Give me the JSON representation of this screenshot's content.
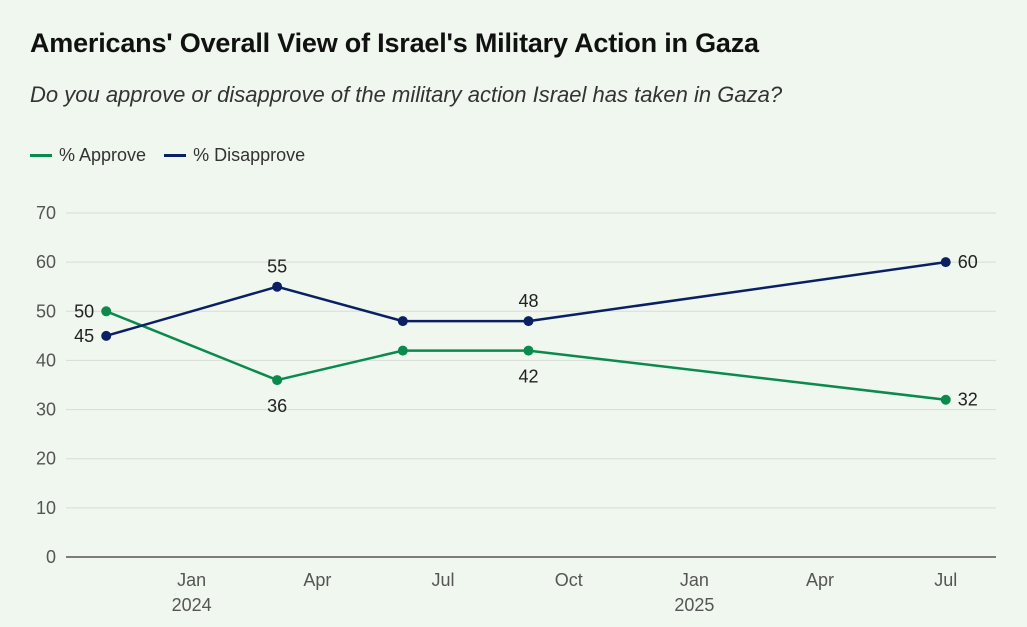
{
  "title": "Americans' Overall View of Israel's Military Action in Gaza",
  "subtitle": "Do you approve or disapprove of the military action Israel has taken in Gaza?",
  "colors": {
    "approve": "#0b8a4d",
    "disapprove": "#0b1f63",
    "grid": "#d7ddd5",
    "axis": "#555555"
  },
  "chart_data": {
    "type": "line",
    "title": "Americans' Overall View of Israel's Military Action in Gaza",
    "xlabel": "",
    "ylabel": "",
    "ylim": [
      0,
      70
    ],
    "yticks": [
      0,
      10,
      20,
      30,
      40,
      50,
      60,
      70
    ],
    "x_range": [
      2023.75,
      2025.6
    ],
    "xticks": [
      {
        "value": 2024.0,
        "label": "Jan",
        "year": "2024"
      },
      {
        "value": 2024.25,
        "label": "Apr",
        "year": ""
      },
      {
        "value": 2024.5,
        "label": "Jul",
        "year": ""
      },
      {
        "value": 2024.75,
        "label": "Oct",
        "year": ""
      },
      {
        "value": 2025.0,
        "label": "Jan",
        "year": "2025"
      },
      {
        "value": 2025.25,
        "label": "Apr",
        "year": ""
      },
      {
        "value": 2025.5,
        "label": "Jul",
        "year": ""
      }
    ],
    "x": [
      2023.83,
      2024.17,
      2024.42,
      2024.67,
      2025.5
    ],
    "series": [
      {
        "name": "% Approve",
        "key": "approve",
        "values": [
          50,
          36,
          42,
          42,
          32
        ],
        "label_pos": [
          "left",
          "below",
          "none",
          "below",
          "right"
        ]
      },
      {
        "name": "% Disapprove",
        "key": "disapprove",
        "values": [
          45,
          55,
          48,
          48,
          60
        ],
        "label_pos": [
          "left",
          "above",
          "none",
          "above",
          "right"
        ]
      }
    ]
  }
}
